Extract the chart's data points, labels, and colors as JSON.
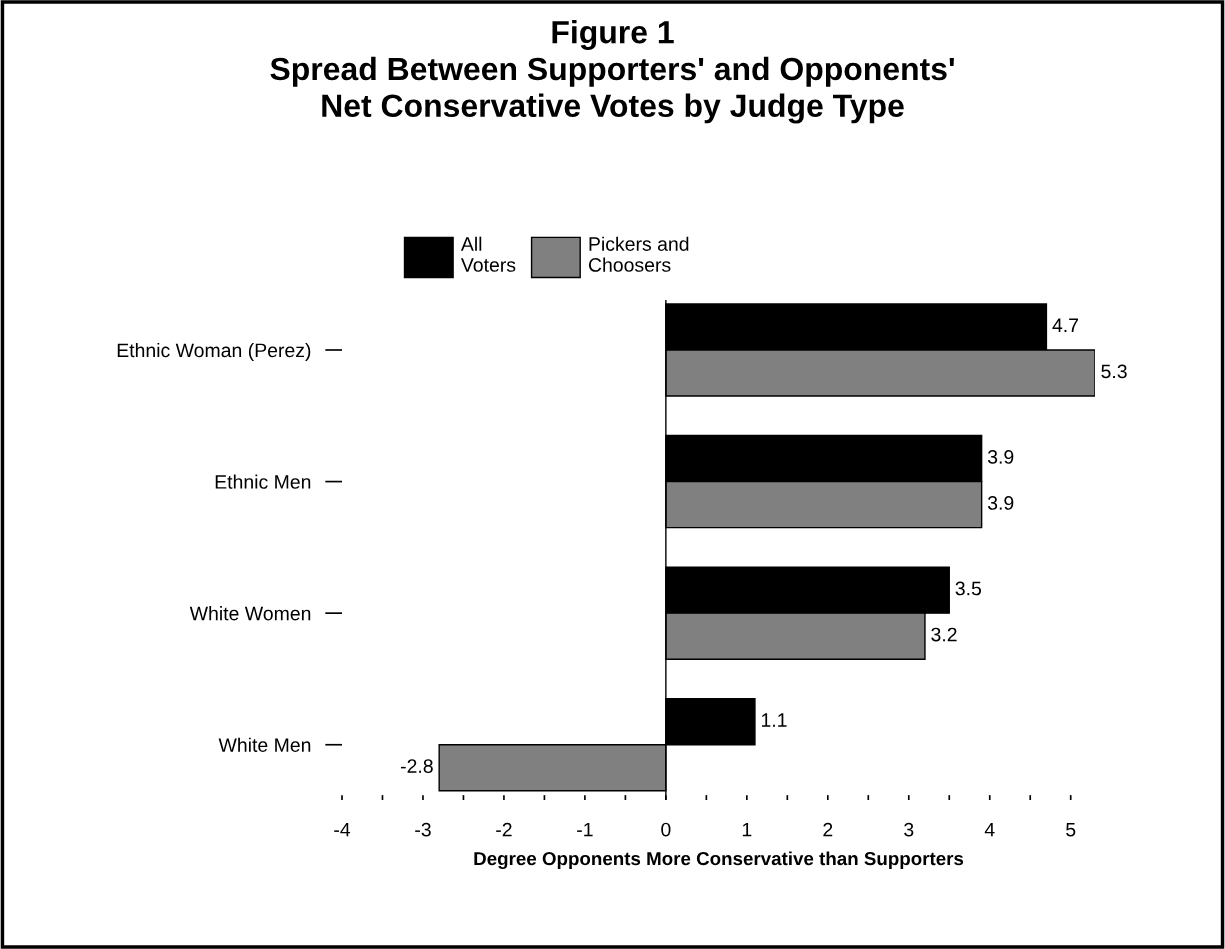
{
  "chart_data": {
    "type": "bar",
    "orientation": "horizontal",
    "title": "Figure 1\nSpread Between Supporters' and Opponents'\nNet Conservative Votes by Judge Type",
    "xlabel": "Degree Opponents More Conservative than Supporters",
    "categories": [
      "Ethnic Woman (Perez)",
      "Ethnic Men",
      "White Women",
      "White Men"
    ],
    "series": [
      {
        "name": "All\nVoters",
        "color": "#000000",
        "values": [
          4.7,
          3.9,
          3.5,
          1.1
        ]
      },
      {
        "name": "Pickers and\nChoosers",
        "color": "#808080",
        "values": [
          5.3,
          3.9,
          3.2,
          -2.8
        ]
      }
    ],
    "xlim": [
      -4,
      5.3
    ],
    "xticks": [
      -4,
      {
        "value": -3.5,
        "label": null
      },
      -3,
      {
        "value": -2.5,
        "label": null
      },
      -2,
      {
        "value": -1.5,
        "label": null
      },
      -1,
      {
        "value": -0.5,
        "label": null
      },
      0,
      {
        "value": 0.5,
        "label": null
      },
      1,
      {
        "value": 1.5,
        "label": null
      },
      2,
      {
        "value": 2.5,
        "label": null
      },
      3,
      {
        "value": 3.5,
        "label": null
      },
      4,
      {
        "value": 4.5,
        "label": null
      },
      5
    ],
    "ref_lines": [
      {
        "axis": "x",
        "value": 0,
        "color": "#000000",
        "line_style": "solid"
      }
    ],
    "data_labels": true,
    "legend": "top",
    "grid": false
  }
}
